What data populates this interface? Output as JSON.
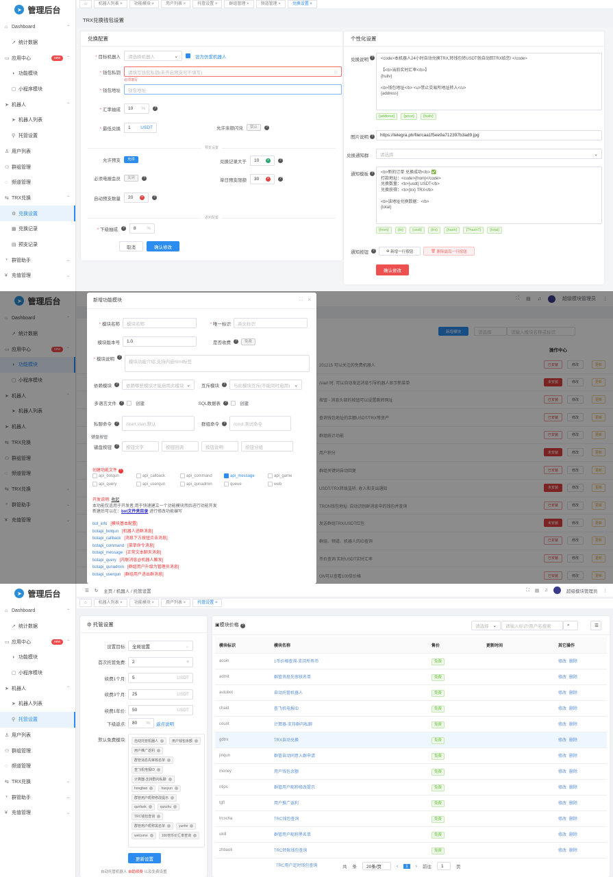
{
  "brand": {
    "name": "管理后台",
    "color": "#2d8cf0"
  },
  "panel1": {
    "sidebar": [
      {
        "label": "Dashboard",
        "icon": "home-icon",
        "arrow": "up"
      },
      {
        "label": "统计数据",
        "icon": "chart-line-icon",
        "sub": true
      },
      {
        "label": "应用中心",
        "icon": "app-icon",
        "arrow": "up",
        "badge": "new"
      },
      {
        "label": "功能模块",
        "icon": "module-icon",
        "sub": true
      },
      {
        "label": "小程序模块",
        "icon": "miniapp-icon",
        "sub": true
      },
      {
        "label": "机器人",
        "icon": "telegram-icon",
        "arrow": "up"
      },
      {
        "label": "机器人列表",
        "icon": "telegram-icon",
        "sub": true
      },
      {
        "label": "托管设置",
        "icon": "link-icon",
        "sub": true
      },
      {
        "label": "用户列表",
        "icon": "user-icon"
      },
      {
        "label": "群组管理",
        "icon": "group-icon"
      },
      {
        "label": "频道管理",
        "icon": "channel-icon"
      },
      {
        "label": "TRX兑换",
        "icon": "exchange-icon",
        "arrow": "up"
      },
      {
        "label": "兑换设置",
        "icon": "gear-icon",
        "sub": true,
        "active": true
      },
      {
        "label": "兑换记录",
        "icon": "table-icon",
        "sub": true
      },
      {
        "label": "预支记录",
        "icon": "record-icon",
        "sub": true
      },
      {
        "label": "群管助手",
        "icon": "assistant-icon",
        "arrow": "down"
      },
      {
        "label": "充值管理",
        "icon": "yen-icon",
        "arrow": "down"
      }
    ],
    "tabs": [
      "机器人列表",
      "功能模块",
      "用户列表",
      "托管设置",
      "群组管理",
      "频道管理",
      "兑换设置"
    ],
    "page_title": "TRX兑换钱包设置",
    "left": {
      "title": "兑换配置",
      "robot_label": "目标机器人",
      "robot_placeholder": "请选择机器人",
      "robot_checkbox": "设为仿爱机器人",
      "key_label": "钱包私钥",
      "key_placeholder": "请填写钱包私钥(未开启预支可不填写)",
      "key_error": "必须填写",
      "addr_label": "钱包地址",
      "addr_placeholder": "钱包地址",
      "rate_label": "汇率抽成",
      "rate_value": "10",
      "rate_unit": "%",
      "min_label": "最低兑换",
      "min_value": "1",
      "min_unit": "USDT",
      "flash_label": "允许余额闪兑",
      "flash_switch": "禁止",
      "advance_divider": "预支设置",
      "allow_label": "允许预支",
      "allow_switch": "允许",
      "record_label": "兑换记录大于",
      "record_value": "10",
      "member_label": "必须电报会员",
      "member_switch": "关闭",
      "daily_label": "单日预支限额",
      "daily_value": "30",
      "auto_label": "自动预支数量",
      "auto_value": "20",
      "rebate_divider": "返利配置",
      "sub_label": "下级抽成",
      "sub_value": "8",
      "sub_unit": "%",
      "cancel": "取消",
      "confirm": "确认修改"
    },
    "right": {
      "title": "个性化设置",
      "desc_label": "兑换说明",
      "desc_text": "<code>本机器人24小时自动兑换TRX,转钱包转USDT就自动回TRX给您! </code>\n\n【<b>当前实时汇率</b>】\n{huilv}\n\n<b>钱包地址</b> <u>禁止交易所地址转入</u>\n{address}",
      "desc_tags": [
        "{address}",
        "{price}",
        "{huilv}"
      ],
      "img_label": "图片说明",
      "img_value": "https://telegra.ph/file/caa1f5ee9a712397b3ad9.jpg",
      "group_label": "兑换通知群",
      "group_placeholder": "请选择",
      "tpl_label": "通知模板",
      "tpl_text": "<b>新的订单 兑换成功</b> ✅\n打款地址：<code>{from}</code>\n兑换数量：<b>{usdt} USDT</b>\n兑换获得：<b>{trx} TRX</b>\n\n<b>该地址兑换数据：</b>\n{total}",
      "tpl_tags": [
        "{from}",
        "{to}",
        "{usdt}",
        "{trx}",
        "{hash}",
        "{?hash?}",
        "{total}"
      ],
      "btn_label": "通知按钮",
      "add_row": "新增一行按钮",
      "del_row": "删除最后一行按钮",
      "confirm": "确认修改"
    }
  },
  "panel2": {
    "sidebar": [
      {
        "label": "Dashboard",
        "icon": "home-icon",
        "arrow": "up"
      },
      {
        "label": "统计数据",
        "icon": "chart-line-icon",
        "sub": true
      },
      {
        "label": "应用中心",
        "icon": "app-icon",
        "arrow": "up",
        "badge": "new"
      },
      {
        "label": "功能模块",
        "icon": "module-icon",
        "sub": true,
        "active": true
      },
      {
        "label": "小程序模块",
        "icon": "miniapp-icon",
        "sub": true
      },
      {
        "label": "机器人",
        "icon": "telegram-icon",
        "arrow": "up"
      },
      {
        "label": "机器人列表",
        "icon": "telegram-icon",
        "sub": true
      },
      {
        "label": "机器人",
        "icon": "telegram-icon"
      },
      {
        "label": "TRX兑换",
        "icon": "exchange-icon"
      },
      {
        "label": "群组管理",
        "icon": "group-icon"
      },
      {
        "label": "频道管理",
        "icon": "channel-icon"
      },
      {
        "label": "TRX兑换",
        "icon": "exchange-icon",
        "arrow": "down"
      },
      {
        "label": "群管助手",
        "icon": "assistant-icon",
        "arrow": "down"
      },
      {
        "label": "充值管理",
        "icon": "yen-icon",
        "arrow": "down"
      }
    ],
    "header_user": "超级模块管理员",
    "bg": {
      "add_module": "新增模块",
      "filter_placeholder": "请选择",
      "search_placeholder": "请输入模块名称或标识",
      "ops_header": "操作中心",
      "rows": [
        {
          "text": "201215 可以关注的免费机器人",
          "state": "已安装"
        },
        {
          "text": "/start 时, 可以自动发送消息引导机器人显示新菜单",
          "state": "未安装"
        },
        {
          "text": "按钮 - 消息头部的按钮可以设置跳转网址",
          "state": "已安装"
        },
        {
          "text": "查询钱包地址的余额USDT/TRX等资产",
          "state": "已安装"
        },
        {
          "text": "群组统计功能",
          "state": "已安装"
        },
        {
          "text": "用户积分",
          "state": "未安装"
        },
        {
          "text": "群组关键词自动回复",
          "state": "已安装"
        },
        {
          "text": "USDT/TRX转账监听, 收入和支出通知",
          "state": "未安装"
        },
        {
          "text": "TRON钱包地址: 自动识别群消息中的钱包并查询",
          "state": "已安装"
        },
        {
          "text": "发送群组TRX/USDT红包",
          "state": "未安装"
        },
        {
          "text": "群组、频道、机器人的ID查询",
          "state": "已安装"
        },
        {
          "text": "币价查询 实时USDT实时汇率",
          "state": "已安装"
        },
        {
          "text": "ON可以查看100倍价格",
          "state": "已安装"
        }
      ],
      "btn_edit": "修改",
      "btn_update": "更新"
    },
    "modal": {
      "title": "新增功能模块",
      "name_label": "模块名称",
      "name_placeholder": "模块名称",
      "id_label": "唯一标识",
      "id_placeholder": "英文标识",
      "ver_label": "模块版本号",
      "ver_value": "1.0",
      "fee_label": "是否收费",
      "fee_switch": "免费",
      "desc_label": "模块说明",
      "desc_placeholder": "模块功能介绍,支持内嵌html标签",
      "dep_label": "依赖模块",
      "dep_placeholder": "依赖哪些模块才能启用此模块",
      "mutex_label": "互斥模块",
      "mutex_placeholder": "与此模块互斥(不能同时启用)",
      "lang_label": "多语言文件",
      "lang_check": "创建",
      "sql_label": "SQL数据表",
      "sql_check": "创建",
      "pm_label": "私聊命令",
      "pm_placeholder": "/start,start,默认",
      "grp_label": "群组命令",
      "grp_placeholder": "/cmd 测试命令",
      "kb_section": "键盘按钮",
      "kb_label": "键盘按钮",
      "kb_ph1": "按钮文字",
      "kb_ph2": "按钮回调",
      "kb_ph3": "按钮说明",
      "kb_ph4": "按钮分组",
      "files_label": "创建功能文件",
      "files": [
        {
          "n": "api_botqun"
        },
        {
          "n": "api_callback"
        },
        {
          "n": "api_command"
        },
        {
          "n": "api_message",
          "on": true
        },
        {
          "n": "api_game"
        },
        {
          "n": "api_query"
        },
        {
          "n": "api_userqun"
        },
        {
          "n": "api_qunadmin"
        },
        {
          "n": "queue"
        },
        {
          "n": "web"
        }
      ],
      "dev_label": "开发说明:",
      "dev_toggle": "收起",
      "dev_text1": "本功能仅适用于开发者,用于快速建立一个功能模块然后进行功能开发",
      "dev_text2_a": "新建后可以在：",
      "dev_text2_link": "bot文件夹目录",
      "dev_text2_b": " 进行修改功能编写",
      "dev_list": [
        {
          "k": "bot_info",
          "v": "[模块基本配置]"
        },
        {
          "k": "botapi_botqun",
          "v": "[机器人进群消息]"
        },
        {
          "k": "botapi_callback",
          "v": "[消息下方按钮点击消息]"
        },
        {
          "k": "botapi_command",
          "v": "[菜单命令消息]"
        },
        {
          "k": "botapi_message",
          "v": "[正常文本聊天消息]"
        },
        {
          "k": "botapi_query",
          "v": "[内联消息@机器人触发]"
        },
        {
          "k": "botapi_qunadmin",
          "v": "[群组用户升级为管理员消息]"
        },
        {
          "k": "botapi_userqun",
          "v": "[群组用户进出群消息]"
        }
      ]
    }
  },
  "panel3": {
    "sidebar": [
      {
        "label": "Dashboard",
        "icon": "home-icon",
        "arrow": "up"
      },
      {
        "label": "统计数据",
        "icon": "chart-line-icon",
        "sub": true
      },
      {
        "label": "应用中心",
        "icon": "app-icon",
        "arrow": "up",
        "badge": "new"
      },
      {
        "label": "功能模块",
        "icon": "module-icon",
        "sub": true
      },
      {
        "label": "小程序模块",
        "icon": "miniapp-icon",
        "sub": true
      },
      {
        "label": "机器人",
        "icon": "telegram-icon",
        "arrow": "up"
      },
      {
        "label": "机器人列表",
        "icon": "telegram-icon",
        "sub": true
      },
      {
        "label": "托管设置",
        "icon": "link-icon",
        "sub": true,
        "active": true
      },
      {
        "label": "用户列表",
        "icon": "user-icon"
      },
      {
        "label": "群组管理",
        "icon": "group-icon"
      },
      {
        "label": "频道管理",
        "icon": "channel-icon"
      },
      {
        "label": "TRX兑换",
        "icon": "exchange-icon",
        "arrow": "down"
      },
      {
        "label": "群管助手",
        "icon": "assistant-icon",
        "arrow": "down"
      },
      {
        "label": "充值管理",
        "icon": "yen-icon",
        "arrow": "down"
      }
    ],
    "breadcrumb": [
      "主页",
      "机器人",
      "托管设置"
    ],
    "header_user": "超级模块管理员",
    "tabs": [
      "机器人列表",
      "功能模块",
      "用户列表",
      "托管设置"
    ],
    "left": {
      "title": "托管设置",
      "fields": [
        {
          "label": "设置目标:",
          "value": "全局设置",
          "suffix": "⌄"
        },
        {
          "label": "首次托管免费:",
          "value": "2",
          "suffix": "≡"
        },
        {
          "label": "续费1个月:",
          "value": "5",
          "suffix": "USDT"
        },
        {
          "label": "续费3个月:",
          "value": "25",
          "suffix": "USDT"
        },
        {
          "label": "续费1年价:",
          "value": "50",
          "suffix": "USDT"
        }
      ],
      "rebate_label": "下级返点:",
      "rebate_value": "80",
      "rebate_unit": "%",
      "rebate_link": "返点说明",
      "free_label": "默认免费模块:",
      "free_modules": [
        "自动托管机器人",
        "用户钱包余额",
        "用户推广返利",
        "群管消息先审核名单",
        "查飞机电报ID",
        "计算器-支持群内私聊",
        "hongbao",
        "haoyun",
        "群管用户昵称修改提示",
        "qunfank",
        "qunzhu",
        "TRC钱包查询",
        "群管用户昵称黑名单",
        "yunfei",
        "welcome",
        "100倍币价汇率查询"
      ],
      "update": "更新设置",
      "footer_a": "自动托管机器人 ",
      "footer_red": "自助续费",
      "footer_b": " 以及免费设置"
    },
    "right": {
      "title": "模块价格",
      "filter_placeholder": "请选择",
      "search_placeholder": "请输入标识/用户名搜索",
      "columns": [
        "模块标识",
        "模块名称",
        "售价",
        "更新时间",
        "其它操作"
      ],
      "rows": [
        [
          "acoin",
          "1币价格查询-支持所有币",
          "免费"
        ],
        [
          "admit",
          "群管消息先审核名单",
          "免费"
        ],
        [
          "autobot",
          "自动托管机器人",
          "免费"
        ],
        [
          "chaid",
          "查飞机电报ID",
          "免费"
        ],
        [
          "count",
          "计算器-支持群内私聊",
          "免费"
        ],
        [
          "gdtrx",
          "TRX自动兑换",
          "免费"
        ],
        [
          "jinqun",
          "群管自动同意入群申请",
          "免费"
        ],
        [
          "money",
          "用户钱包余额",
          "免费"
        ],
        [
          "ntips",
          "群管用户昵称修改提示",
          "免费"
        ],
        [
          "tgfl",
          "用户推广返利",
          "免费"
        ],
        [
          "trcscha",
          "TRC钱包查询",
          "免费"
        ],
        [
          "ukill",
          "群管用户昵称黑名单",
          "免费"
        ],
        [
          "zhbaoti",
          "TRC转账钱包查询",
          "免费"
        ]
      ],
      "highlight_row": "gdtrx",
      "edit": "修改",
      "del": "删除",
      "overflow_row": "TRC用户定时钱包查询",
      "pager": {
        "total_a": "共",
        "total_b": "条",
        "size": "20条/页",
        "page": "1",
        "goto": "前往",
        "goto_value": "1",
        "unit": "页"
      }
    }
  }
}
